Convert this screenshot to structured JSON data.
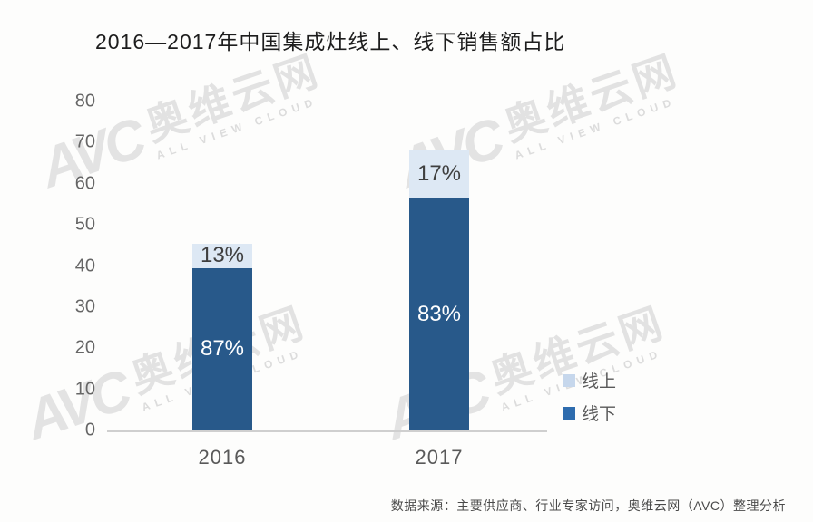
{
  "watermark": {
    "logo_text": "AVC",
    "brand_cn": "奥维云网",
    "brand_en": "ALL VIEW CLOUD"
  },
  "chart_data": {
    "type": "bar",
    "stacked": true,
    "title": "2016—2017年中国集成灶线上、线下销售额占比",
    "categories": [
      "2016",
      "2017"
    ],
    "series": [
      {
        "name": "线上",
        "values": [
          5.9,
          11.6
        ],
        "labels": [
          "13%",
          "17%"
        ],
        "bar_color": "#dde8f4",
        "label_color": "#3f3f3f",
        "legend_color": "#c6d7ec"
      },
      {
        "name": "线下",
        "values": [
          39.5,
          56.5
        ],
        "labels": [
          "87%",
          "83%"
        ],
        "bar_color": "#28598a",
        "label_color": "#ffffff",
        "legend_color": "#2e6cae"
      }
    ],
    "ylim": [
      0,
      80
    ],
    "yticks": [
      0,
      10,
      20,
      30,
      40,
      50,
      60,
      70,
      80
    ],
    "grid": false,
    "legend_position": "right-bottom",
    "axis_tick_color": "#666666",
    "axis_line_color": "#cfcfcf",
    "source": "数据来源：主要供应商、行业专家访问，奥维云网（AVC）整理分析"
  }
}
